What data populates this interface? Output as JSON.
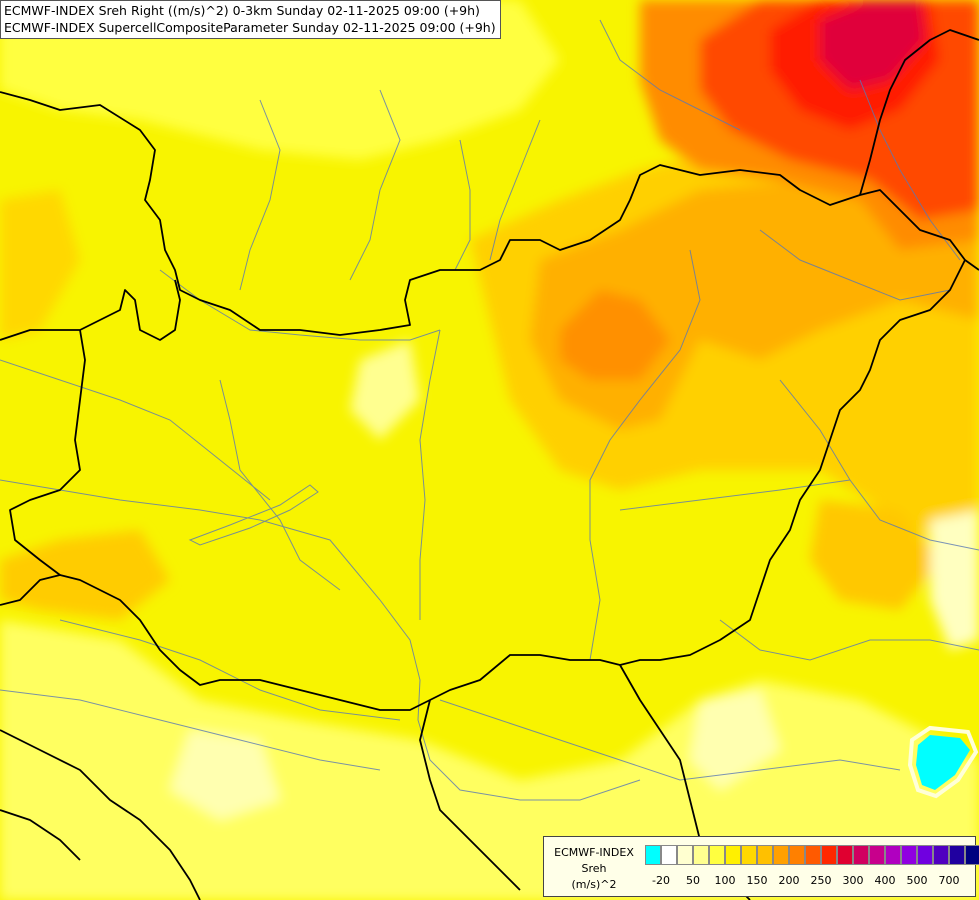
{
  "title": {
    "line1": "ECMWF-INDEX Sreh Right ((m/s)^2) 0-3km Sunday 02-11-2025 09:00 (+9h)",
    "line2": "ECMWF-INDEX SupercellCompositeParameter Sunday 02-11-2025 09:00 (+9h)"
  },
  "legend": {
    "source": "ECMWF-INDEX",
    "param": "Sreh",
    "unit": "(m/s)^2",
    "colors": [
      "#00ffff",
      "#ffffff",
      "#ffffd0",
      "#ffff90",
      "#ffff40",
      "#fff000",
      "#ffd800",
      "#ffc000",
      "#ffa000",
      "#ff8000",
      "#ff5a00",
      "#ff2800",
      "#e00030",
      "#d00060",
      "#c8008c",
      "#b000c0",
      "#9000e0",
      "#7000e0",
      "#5000c0",
      "#2000a0",
      "#000080"
    ],
    "ticks": [
      "-20",
      "50",
      "100",
      "150",
      "200",
      "250",
      "300",
      "400",
      "500",
      "700"
    ]
  }
}
